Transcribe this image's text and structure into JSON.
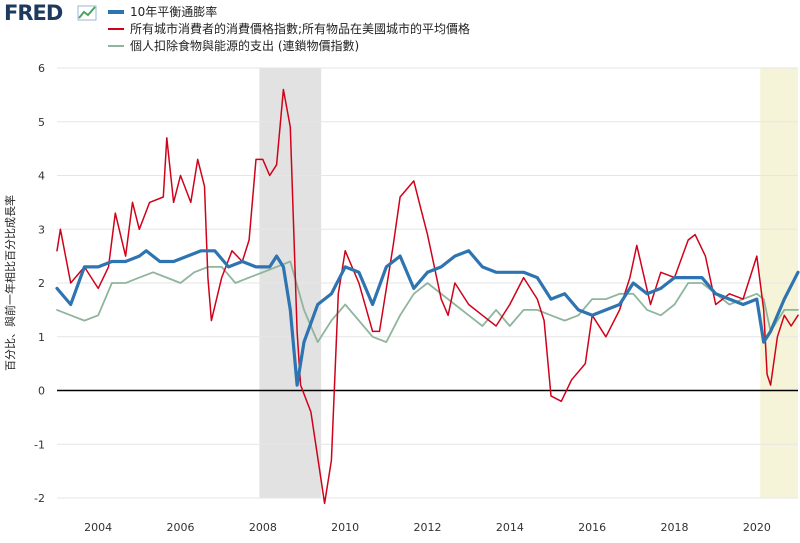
{
  "brand": {
    "logo_text": "FRED"
  },
  "colors": {
    "series1": "#2e74b0",
    "series2": "#d0021b",
    "series3": "#8fb59c",
    "recession": "#e2e2e2",
    "highlight": "#f6f4d8",
    "grid": "#e6e6e6",
    "zero_line": "#000000"
  },
  "chart_data": {
    "type": "line",
    "ylabel": "百分比、與前一年相比百分比成長率",
    "ylim": [
      -2,
      6
    ],
    "yticks": [
      -2,
      -1,
      0,
      1,
      2,
      3,
      4,
      5,
      6
    ],
    "xlim": [
      "2003-01",
      "2021-01"
    ],
    "xticks": [
      "2004",
      "2006",
      "2008",
      "2010",
      "2012",
      "2014",
      "2016",
      "2018",
      "2020"
    ],
    "grid": true,
    "legend_position": "top-left",
    "shaded_periods": [
      {
        "start": "2007-12",
        "end": "2009-06",
        "kind": "recession"
      },
      {
        "start": "2020-02",
        "end": "2021-01",
        "kind": "highlight"
      }
    ],
    "series": [
      {
        "name": "10年平衡通膨率",
        "color": "#2e74b0",
        "points": [
          [
            "2003-01",
            1.9
          ],
          [
            "2003-05",
            1.6
          ],
          [
            "2003-09",
            2.3
          ],
          [
            "2004-01",
            2.3
          ],
          [
            "2004-05",
            2.4
          ],
          [
            "2004-09",
            2.4
          ],
          [
            "2005-01",
            2.5
          ],
          [
            "2005-03",
            2.6
          ],
          [
            "2005-07",
            2.4
          ],
          [
            "2005-11",
            2.4
          ],
          [
            "2006-03",
            2.5
          ],
          [
            "2006-07",
            2.6
          ],
          [
            "2006-11",
            2.6
          ],
          [
            "2007-03",
            2.3
          ],
          [
            "2007-07",
            2.4
          ],
          [
            "2007-11",
            2.3
          ],
          [
            "2008-03",
            2.3
          ],
          [
            "2008-05",
            2.5
          ],
          [
            "2008-07",
            2.3
          ],
          [
            "2008-09",
            1.5
          ],
          [
            "2008-11",
            0.1
          ],
          [
            "2009-01",
            0.9
          ],
          [
            "2009-05",
            1.6
          ],
          [
            "2009-09",
            1.8
          ],
          [
            "2010-01",
            2.3
          ],
          [
            "2010-05",
            2.2
          ],
          [
            "2010-09",
            1.6
          ],
          [
            "2011-01",
            2.3
          ],
          [
            "2011-05",
            2.5
          ],
          [
            "2011-09",
            1.9
          ],
          [
            "2012-01",
            2.2
          ],
          [
            "2012-05",
            2.3
          ],
          [
            "2012-09",
            2.5
          ],
          [
            "2013-01",
            2.6
          ],
          [
            "2013-05",
            2.3
          ],
          [
            "2013-09",
            2.2
          ],
          [
            "2014-01",
            2.2
          ],
          [
            "2014-05",
            2.2
          ],
          [
            "2014-09",
            2.1
          ],
          [
            "2015-01",
            1.7
          ],
          [
            "2015-05",
            1.8
          ],
          [
            "2015-09",
            1.5
          ],
          [
            "2016-01",
            1.4
          ],
          [
            "2016-05",
            1.5
          ],
          [
            "2016-09",
            1.6
          ],
          [
            "2017-01",
            2.0
          ],
          [
            "2017-05",
            1.8
          ],
          [
            "2017-09",
            1.9
          ],
          [
            "2018-01",
            2.1
          ],
          [
            "2018-05",
            2.1
          ],
          [
            "2018-09",
            2.1
          ],
          [
            "2019-01",
            1.8
          ],
          [
            "2019-05",
            1.7
          ],
          [
            "2019-09",
            1.6
          ],
          [
            "2020-01",
            1.7
          ],
          [
            "2020-03",
            0.9
          ],
          [
            "2020-05",
            1.1
          ],
          [
            "2020-09",
            1.7
          ],
          [
            "2021-01",
            2.2
          ]
        ]
      },
      {
        "name": "所有城市消費者的消費價格指數;所有物品在美國城市的平均價格",
        "color": "#d0021b",
        "points": [
          [
            "2003-01",
            2.6
          ],
          [
            "2003-02",
            3.0
          ],
          [
            "2003-05",
            2.0
          ],
          [
            "2003-09",
            2.3
          ],
          [
            "2004-01",
            1.9
          ],
          [
            "2004-04",
            2.3
          ],
          [
            "2004-06",
            3.3
          ],
          [
            "2004-09",
            2.5
          ],
          [
            "2004-11",
            3.5
          ],
          [
            "2005-01",
            3.0
          ],
          [
            "2005-04",
            3.5
          ],
          [
            "2005-08",
            3.6
          ],
          [
            "2005-09",
            4.7
          ],
          [
            "2005-11",
            3.5
          ],
          [
            "2006-01",
            4.0
          ],
          [
            "2006-04",
            3.5
          ],
          [
            "2006-06",
            4.3
          ],
          [
            "2006-08",
            3.8
          ],
          [
            "2006-09",
            2.1
          ],
          [
            "2006-10",
            1.3
          ],
          [
            "2007-01",
            2.1
          ],
          [
            "2007-04",
            2.6
          ],
          [
            "2007-07",
            2.4
          ],
          [
            "2007-09",
            2.8
          ],
          [
            "2007-11",
            4.3
          ],
          [
            "2008-01",
            4.3
          ],
          [
            "2008-03",
            4.0
          ],
          [
            "2008-05",
            4.2
          ],
          [
            "2008-07",
            5.6
          ],
          [
            "2008-09",
            4.9
          ],
          [
            "2008-11",
            1.1
          ],
          [
            "2008-12",
            0.1
          ],
          [
            "2009-03",
            -0.4
          ],
          [
            "2009-07",
            -2.1
          ],
          [
            "2009-09",
            -1.3
          ],
          [
            "2009-11",
            1.8
          ],
          [
            "2010-01",
            2.6
          ],
          [
            "2010-05",
            2.0
          ],
          [
            "2010-09",
            1.1
          ],
          [
            "2010-11",
            1.1
          ],
          [
            "2011-03",
            2.7
          ],
          [
            "2011-05",
            3.6
          ],
          [
            "2011-09",
            3.9
          ],
          [
            "2011-11",
            3.4
          ],
          [
            "2012-01",
            2.9
          ],
          [
            "2012-05",
            1.7
          ],
          [
            "2012-07",
            1.4
          ],
          [
            "2012-09",
            2.0
          ],
          [
            "2013-01",
            1.6
          ],
          [
            "2013-05",
            1.4
          ],
          [
            "2013-09",
            1.2
          ],
          [
            "2014-01",
            1.6
          ],
          [
            "2014-05",
            2.1
          ],
          [
            "2014-09",
            1.7
          ],
          [
            "2014-11",
            1.3
          ],
          [
            "2015-01",
            -0.1
          ],
          [
            "2015-04",
            -0.2
          ],
          [
            "2015-07",
            0.2
          ],
          [
            "2015-11",
            0.5
          ],
          [
            "2016-01",
            1.4
          ],
          [
            "2016-05",
            1.0
          ],
          [
            "2016-09",
            1.5
          ],
          [
            "2016-12",
            2.1
          ],
          [
            "2017-02",
            2.7
          ],
          [
            "2017-06",
            1.6
          ],
          [
            "2017-09",
            2.2
          ],
          [
            "2018-01",
            2.1
          ],
          [
            "2018-05",
            2.8
          ],
          [
            "2018-07",
            2.9
          ],
          [
            "2018-10",
            2.5
          ],
          [
            "2019-01",
            1.6
          ],
          [
            "2019-05",
            1.8
          ],
          [
            "2019-09",
            1.7
          ],
          [
            "2019-12",
            2.3
          ],
          [
            "2020-01",
            2.5
          ],
          [
            "2020-03",
            1.5
          ],
          [
            "2020-04",
            0.3
          ],
          [
            "2020-05",
            0.1
          ],
          [
            "2020-07",
            1.0
          ],
          [
            "2020-09",
            1.4
          ],
          [
            "2020-11",
            1.2
          ],
          [
            "2021-01",
            1.4
          ]
        ]
      },
      {
        "name": "個人扣除食物與能源的支出 (連鎖物價指數)",
        "color": "#8fb59c",
        "points": [
          [
            "2003-01",
            1.5
          ],
          [
            "2003-05",
            1.4
          ],
          [
            "2003-09",
            1.3
          ],
          [
            "2004-01",
            1.4
          ],
          [
            "2004-05",
            2.0
          ],
          [
            "2004-09",
            2.0
          ],
          [
            "2005-01",
            2.1
          ],
          [
            "2005-05",
            2.2
          ],
          [
            "2005-09",
            2.1
          ],
          [
            "2006-01",
            2.0
          ],
          [
            "2006-05",
            2.2
          ],
          [
            "2006-09",
            2.3
          ],
          [
            "2007-01",
            2.3
          ],
          [
            "2007-05",
            2.0
          ],
          [
            "2007-09",
            2.1
          ],
          [
            "2008-01",
            2.2
          ],
          [
            "2008-05",
            2.3
          ],
          [
            "2008-09",
            2.4
          ],
          [
            "2009-01",
            1.5
          ],
          [
            "2009-05",
            0.9
          ],
          [
            "2009-09",
            1.3
          ],
          [
            "2010-01",
            1.6
          ],
          [
            "2010-05",
            1.3
          ],
          [
            "2010-09",
            1.0
          ],
          [
            "2011-01",
            0.9
          ],
          [
            "2011-05",
            1.4
          ],
          [
            "2011-09",
            1.8
          ],
          [
            "2012-01",
            2.0
          ],
          [
            "2012-05",
            1.8
          ],
          [
            "2012-09",
            1.6
          ],
          [
            "2013-01",
            1.4
          ],
          [
            "2013-05",
            1.2
          ],
          [
            "2013-09",
            1.5
          ],
          [
            "2014-01",
            1.2
          ],
          [
            "2014-05",
            1.5
          ],
          [
            "2014-09",
            1.5
          ],
          [
            "2015-01",
            1.4
          ],
          [
            "2015-05",
            1.3
          ],
          [
            "2015-09",
            1.4
          ],
          [
            "2016-01",
            1.7
          ],
          [
            "2016-05",
            1.7
          ],
          [
            "2016-09",
            1.8
          ],
          [
            "2017-01",
            1.8
          ],
          [
            "2017-05",
            1.5
          ],
          [
            "2017-09",
            1.4
          ],
          [
            "2018-01",
            1.6
          ],
          [
            "2018-05",
            2.0
          ],
          [
            "2018-09",
            2.0
          ],
          [
            "2019-01",
            1.8
          ],
          [
            "2019-05",
            1.6
          ],
          [
            "2019-09",
            1.7
          ],
          [
            "2020-01",
            1.8
          ],
          [
            "2020-03",
            1.7
          ],
          [
            "2020-05",
            1.1
          ],
          [
            "2020-09",
            1.5
          ],
          [
            "2021-01",
            1.5
          ]
        ]
      }
    ]
  }
}
